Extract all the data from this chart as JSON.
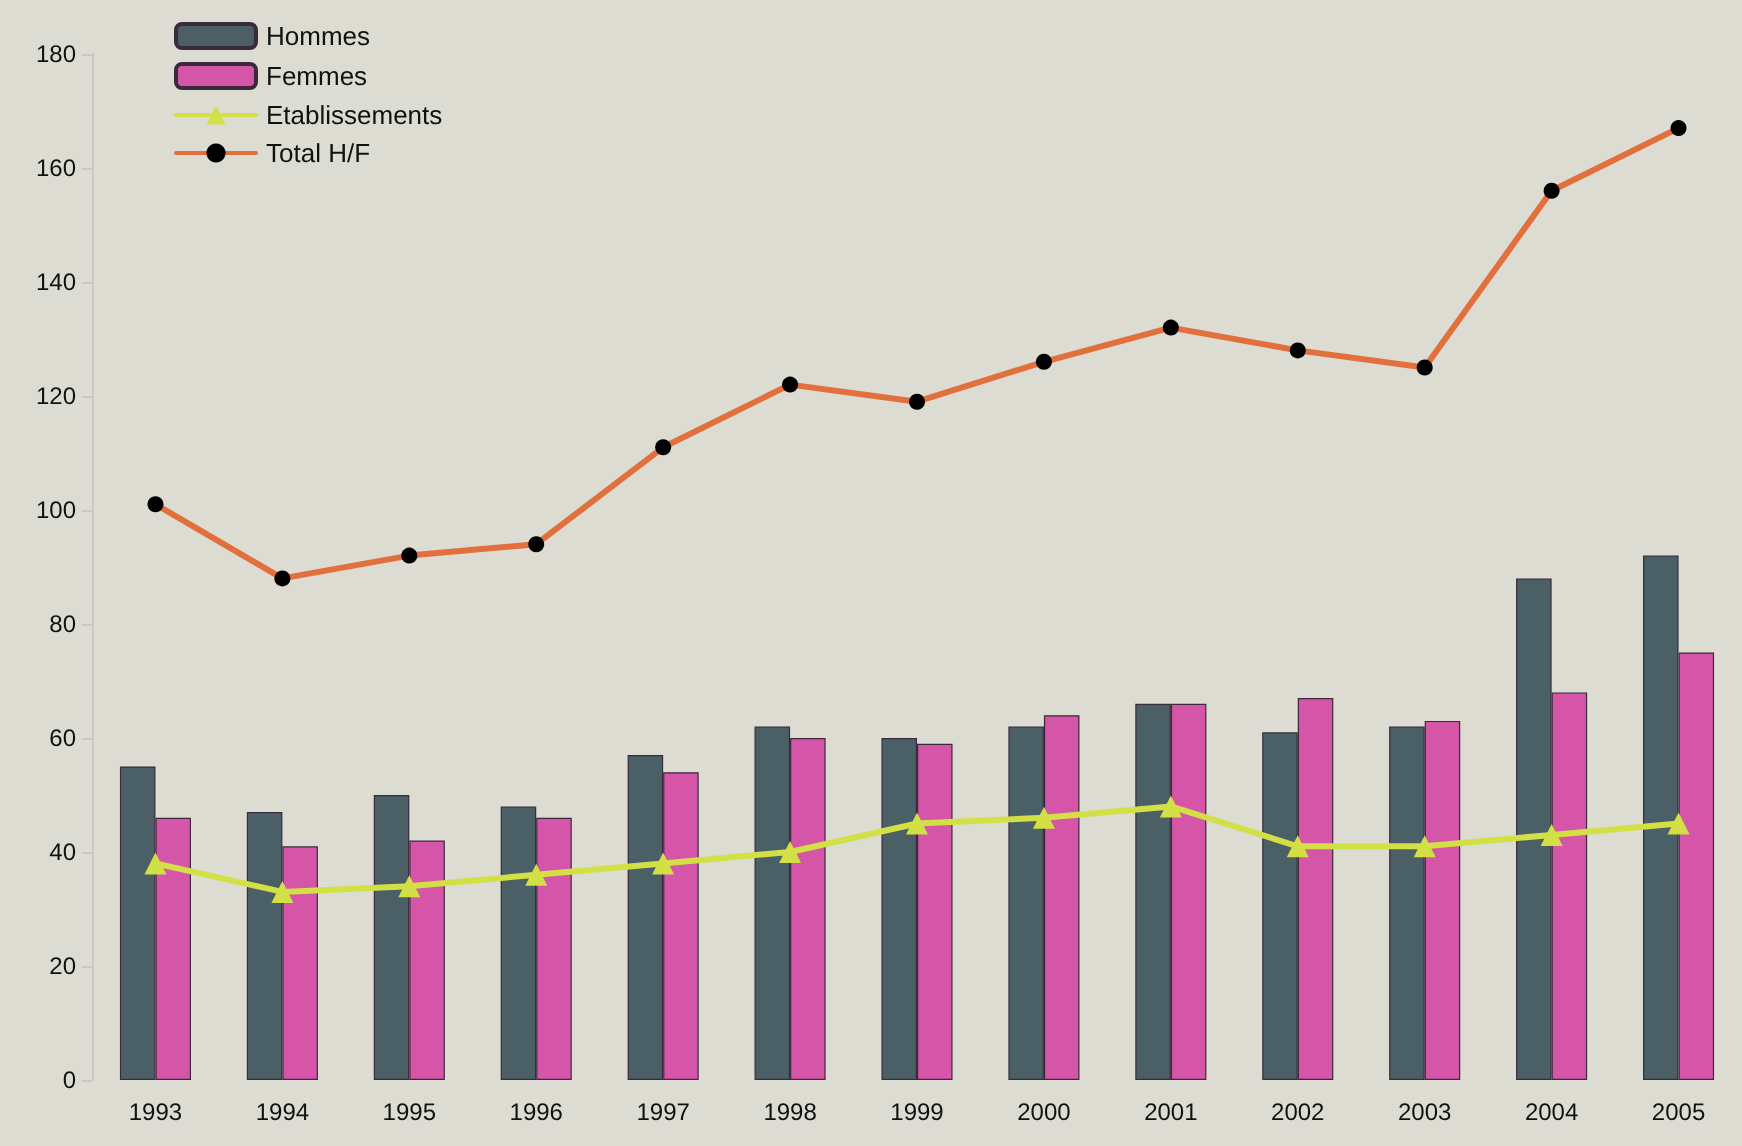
{
  "chart_data": {
    "type": "bar",
    "categories": [
      "1993",
      "1994",
      "1995",
      "1996",
      "1997",
      "1998",
      "1999",
      "2000",
      "2001",
      "2002",
      "2003",
      "2004",
      "2005"
    ],
    "series": [
      {
        "name": "Hommes",
        "color": "#4b5f66",
        "values": [
          55,
          47,
          50,
          48,
          57,
          62,
          60,
          62,
          66,
          61,
          62,
          88,
          92
        ]
      },
      {
        "name": "Femmes",
        "color": "#d555a8",
        "values": [
          46,
          41,
          42,
          46,
          54,
          60,
          59,
          64,
          66,
          67,
          63,
          68,
          75
        ]
      },
      {
        "name": "Etablissements",
        "type": "line",
        "color": "#d2e046",
        "marker": "triangle",
        "values": [
          38,
          33,
          34,
          36,
          38,
          40,
          45,
          46,
          48,
          41,
          41,
          43,
          45
        ]
      },
      {
        "name": "Total H/F",
        "type": "line",
        "color": "#e2703c",
        "marker": "circle",
        "values": [
          101,
          88,
          92,
          94,
          111,
          122,
          119,
          126,
          132,
          128,
          125,
          156,
          167
        ]
      }
    ],
    "ylim": [
      0,
      180
    ],
    "yticks": [
      0,
      20,
      40,
      60,
      80,
      100,
      120,
      140,
      160,
      180
    ],
    "grid": false,
    "legend": "top left"
  }
}
